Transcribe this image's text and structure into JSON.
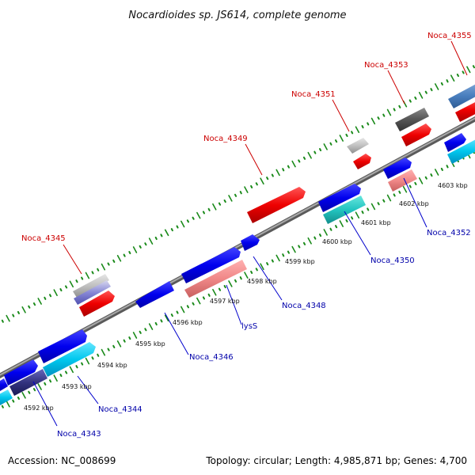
{
  "title": "Nocardioides sp. JS614, complete genome",
  "footer": {
    "accession": "Accession: NC_008699",
    "summary": "Topology: circular; Length: 4,985,871 bp; Genes: 4,700"
  },
  "colors": {
    "backbone": "#7d7d7d",
    "tick": "#1a8a1a",
    "label_top": "#cc0000",
    "label_bottom": "#0000aa",
    "leader_top": "#cc0000",
    "leader_bottom": "#0000cc"
  },
  "kbp_labels": [
    "4592 kbp",
    "4593 kbp",
    "4594 kbp",
    "4595 kbp",
    "4596 kbp",
    "4597 kbp",
    "4598 kbp",
    "4599 kbp",
    "4600 kbp",
    "4601 kbp",
    "4602 kbp",
    "4603 kbp"
  ],
  "gene_labels_top": [
    "Noca_4345",
    "Noca_4349",
    "Noca_4351",
    "Noca_4353",
    "Noca_4355"
  ],
  "gene_labels_bottom": [
    "Noca_4343",
    "Noca_4344",
    "Noca_4346",
    "lysS",
    "Noca_4348",
    "Noca_4350",
    "Noca_4352"
  ]
}
